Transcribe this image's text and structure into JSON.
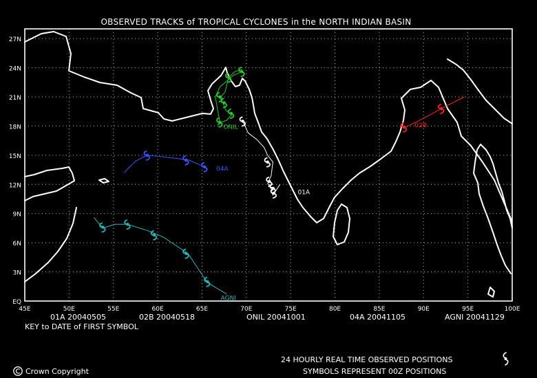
{
  "title": "OBSERVED TRACKS of TROPICAL CYCLONES in the NORTH INDIAN BASIN",
  "x_ticks": [
    "45E",
    "50E",
    "55E",
    "60E",
    "65E",
    "70E",
    "75E",
    "80E",
    "85E",
    "90E",
    "95E",
    "100E"
  ],
  "y_ticks": [
    "EQ",
    "3N",
    "6N",
    "9N",
    "12N",
    "15N",
    "18N",
    "21N",
    "24N",
    "27N"
  ],
  "legend_entries": [
    {
      "label": "01A 20040505",
      "color": "#ffffff"
    },
    {
      "label": "02B 20040518",
      "color": "#ff2020"
    },
    {
      "label": "ONIL 20041001",
      "color": "#22cc22"
    },
    {
      "label": "04A 20041105",
      "color": "#3355ff"
    },
    {
      "label": "AGNI 20041129",
      "color": "#22b8b8"
    }
  ],
  "key_text": "KEY to DATE of FIRST SYMBOL",
  "copyright": "Crown Copyright",
  "note1": "24 HOURLY REAL TIME OBSERVED POSITIONS",
  "note2": "SYMBOLS REPRESENT 00Z POSITIONS",
  "chart_data": {
    "type": "map",
    "xlim": [
      45,
      100
    ],
    "ylim": [
      0,
      28
    ],
    "grid": true,
    "tracks": [
      {
        "name": "01A",
        "color": "#ffffff",
        "label_pos": [
          75.8,
          11.0
        ],
        "points": [
          [
            69.6,
            18.5
          ],
          [
            70.2,
            17.3
          ],
          [
            71.2,
            16.6
          ],
          [
            72.0,
            15.8
          ],
          [
            72.4,
            15.0
          ],
          [
            73.0,
            14.3
          ],
          [
            72.8,
            12.9
          ],
          [
            72.4,
            12.1
          ],
          [
            72.8,
            11.7
          ],
          [
            73.2,
            11.6
          ],
          [
            72.8,
            11.3
          ],
          [
            73.0,
            10.9
          ],
          [
            73.8,
            12.0
          ]
        ],
        "symbols": [
          [
            69.6,
            18.5
          ],
          [
            72.4,
            14.3
          ],
          [
            72.6,
            12.3
          ],
          [
            73.0,
            11.6
          ],
          [
            73.1,
            11.1
          ]
        ]
      },
      {
        "name": "02B",
        "color": "#ff2020",
        "label_pos": [
          89.0,
          17.9
        ],
        "points": [
          [
            94.6,
            21.0
          ],
          [
            92.2,
            19.9
          ],
          [
            90.0,
            18.8
          ],
          [
            87.8,
            17.8
          ]
        ],
        "symbols": [
          [
            92.0,
            19.8
          ],
          [
            87.8,
            17.9
          ]
        ]
      },
      {
        "name": "ONIL",
        "color": "#22cc22",
        "label_pos": [
          67.4,
          17.7
        ],
        "points": [
          [
            69.5,
            23.8
          ],
          [
            68.7,
            23.6
          ],
          [
            68.0,
            23.0
          ],
          [
            67.6,
            21.5
          ],
          [
            67.0,
            20.9
          ],
          [
            67.4,
            20.3
          ],
          [
            67.7,
            19.6
          ],
          [
            68.4,
            19.2
          ],
          [
            67.8,
            18.6
          ],
          [
            67.2,
            18.4
          ],
          [
            66.8,
            18.1
          ],
          [
            67.0,
            18.5
          ],
          [
            66.8,
            19.5
          ],
          [
            66.5,
            21.0
          ],
          [
            67.0,
            22.0
          ],
          [
            68.5,
            23.2
          ],
          [
            69.5,
            23.6
          ]
        ],
        "symbols": [
          [
            69.5,
            23.6
          ],
          [
            68.0,
            23.0
          ],
          [
            67.0,
            21.0
          ],
          [
            67.5,
            20.4
          ],
          [
            68.3,
            19.3
          ],
          [
            67.0,
            18.4
          ]
        ]
      },
      {
        "name": "04A",
        "color": "#3355ff",
        "label_pos": [
          66.6,
          13.4
        ],
        "points": [
          [
            65.6,
            13.5
          ],
          [
            65.3,
            13.8
          ],
          [
            63.5,
            14.5
          ],
          [
            61.0,
            14.8
          ],
          [
            58.8,
            15.0
          ],
          [
            57.5,
            14.4
          ],
          [
            56.2,
            13.2
          ]
        ],
        "symbols": [
          [
            65.3,
            13.8
          ],
          [
            63.2,
            14.5
          ],
          [
            58.8,
            15.0
          ]
        ]
      },
      {
        "name": "AGNI",
        "color": "#22b8b8",
        "label_pos": [
          67.1,
          0.1
        ],
        "points": [
          [
            67.8,
            0.7
          ],
          [
            65.6,
            1.9
          ],
          [
            63.4,
            4.9
          ],
          [
            60.6,
            6.6
          ],
          [
            59.0,
            7.2
          ],
          [
            56.6,
            7.9
          ],
          [
            55.2,
            7.9
          ],
          [
            53.8,
            7.5
          ],
          [
            52.8,
            8.6
          ]
        ],
        "symbols": [
          [
            65.6,
            2.0
          ],
          [
            63.2,
            4.9
          ],
          [
            59.6,
            6.8
          ],
          [
            56.6,
            7.9
          ],
          [
            53.8,
            7.6
          ]
        ]
      }
    ]
  }
}
